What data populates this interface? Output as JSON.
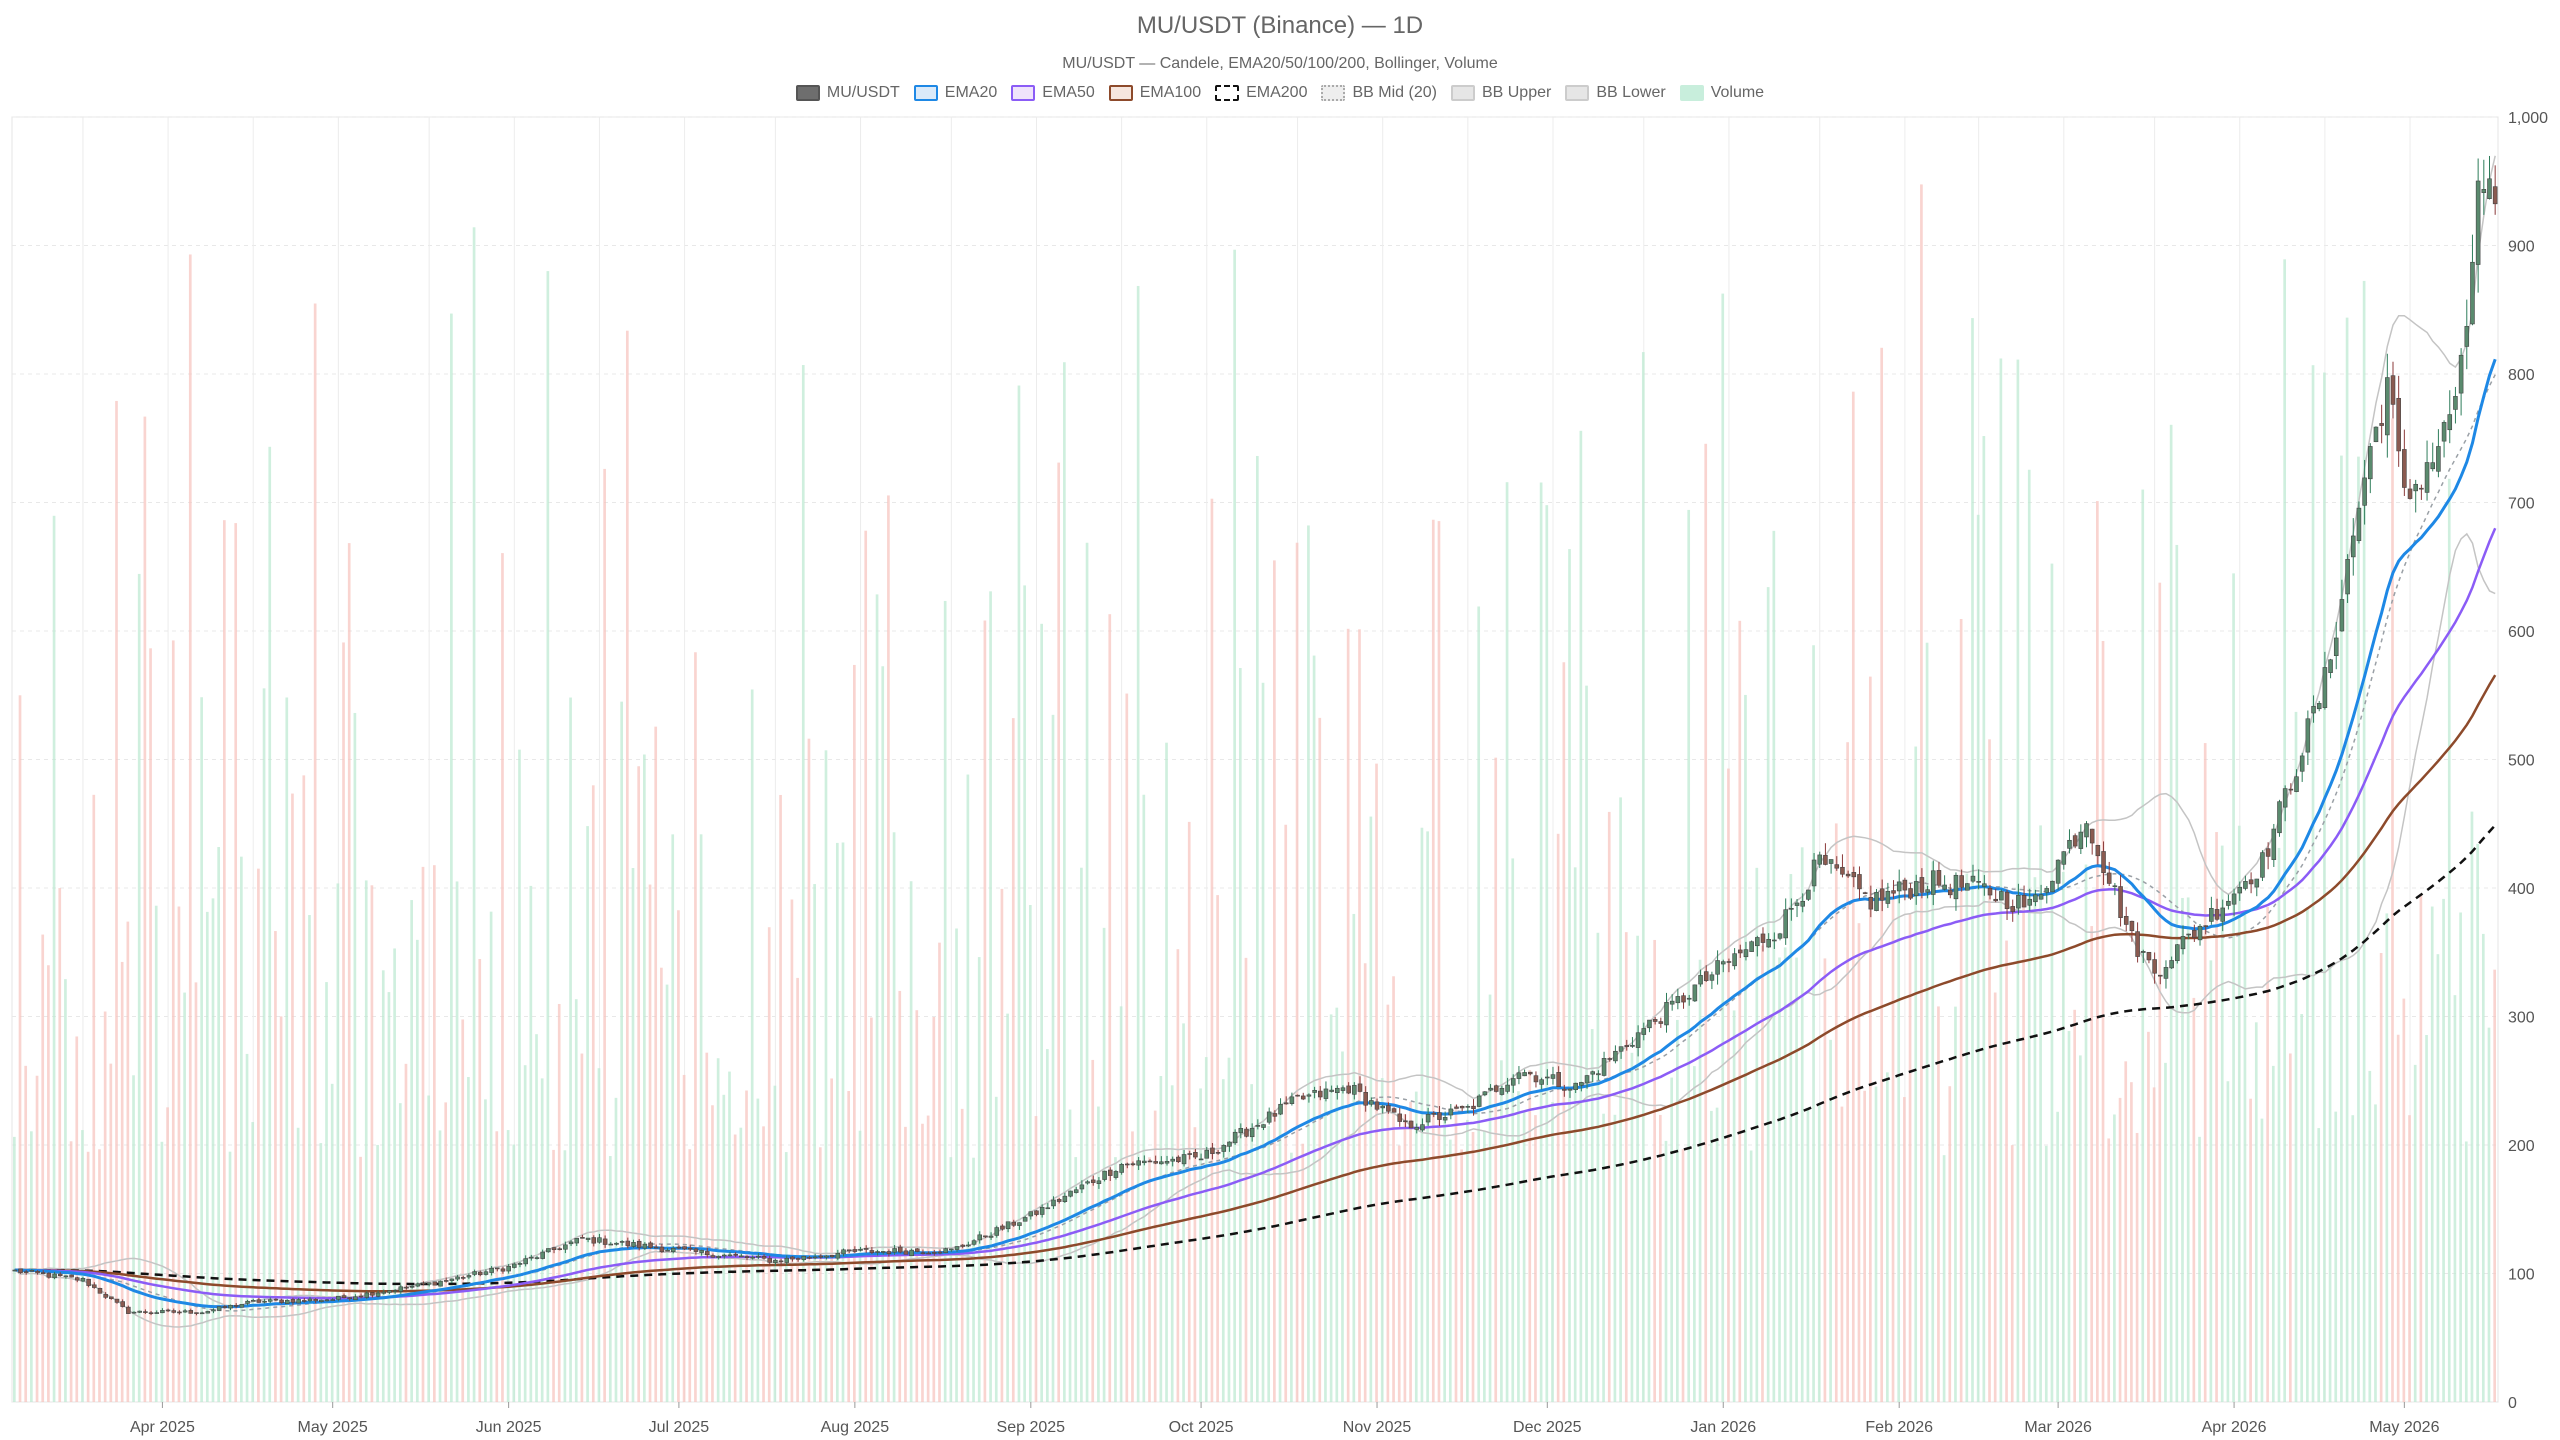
{
  "title": "MU/USDT (Binance) — 1D",
  "subtitle": "MU/USDT — Candele, EMA20/50/100/200, Bollinger, Volume",
  "legend": [
    {
      "name": "MU/USDT",
      "fill": "#6e6e6e",
      "stroke": "#555555",
      "style": "solid"
    },
    {
      "name": "EMA20",
      "fill": "#dbeaf9",
      "stroke": "#1e88e5",
      "style": "solid"
    },
    {
      "name": "EMA50",
      "fill": "#efe3fb",
      "stroke": "#8b5cf6",
      "style": "solid"
    },
    {
      "name": "EMA100",
      "fill": "#f6e6de",
      "stroke": "#8d4a2b",
      "style": "solid"
    },
    {
      "name": "EMA200",
      "fill": "#ffffff",
      "stroke": "#111111",
      "style": "dashed"
    },
    {
      "name": "BB Mid (20)",
      "fill": "#eeeeee",
      "stroke": "#aaaaaa",
      "style": "dotted"
    },
    {
      "name": "BB Upper",
      "fill": "#e6e6e6",
      "stroke": "#cccccc",
      "style": "solid"
    },
    {
      "name": "BB Lower",
      "fill": "#e6e6e6",
      "stroke": "#cccccc",
      "style": "solid"
    },
    {
      "name": "Volume",
      "fill": "#c8eedc",
      "stroke": "#c8eedc",
      "style": "solid"
    }
  ],
  "chart_data": {
    "type": "candlestick",
    "x_range": [
      "2025-03-20",
      "2026-05-31"
    ],
    "ylim": [
      0,
      1000
    ],
    "y_ticks": [
      0,
      100,
      200,
      300,
      400,
      500,
      600,
      700,
      800,
      900,
      "1,000"
    ],
    "y_axis_side": "right",
    "grid": true,
    "legend_position": "top-center",
    "x_ticks": [
      {
        "label": "Apr 2025",
        "date": "2025-04-01"
      },
      {
        "label": "May 2025",
        "date": "2025-05-01"
      },
      {
        "label": "Jun 2025",
        "date": "2025-06-01"
      },
      {
        "label": "Jul 2025",
        "date": "2025-07-01"
      },
      {
        "label": "Aug 2025",
        "date": "2025-08-01"
      },
      {
        "label": "Sep 2025",
        "date": "2025-09-01"
      },
      {
        "label": "Oct 2025",
        "date": "2025-10-01"
      },
      {
        "label": "Nov 2025",
        "date": "2025-11-01"
      },
      {
        "label": "Dec 2025",
        "date": "2025-12-01"
      },
      {
        "label": "Jan 2026",
        "date": "2026-01-01"
      },
      {
        "label": "Feb 2026",
        "date": "2026-02-01"
      },
      {
        "label": "Mar 2026",
        "date": "2026-03-01"
      },
      {
        "label": "Apr 2026",
        "date": "2026-04-01"
      },
      {
        "label": "May 2026",
        "date": "2026-05-01"
      }
    ],
    "colors": {
      "up": "#2e7d5b",
      "down": "#8b3a3a",
      "body_up": "#5a8a6e",
      "body_down": "#8a5a50",
      "vol_up": "#bfead3",
      "vol_down": "#f7c6c0"
    },
    "price_anchors": [
      {
        "date": "2025-03-20",
        "close": 102
      },
      {
        "date": "2025-04-01",
        "close": 95
      },
      {
        "date": "2025-04-09",
        "close": 70
      },
      {
        "date": "2025-04-22",
        "close": 70
      },
      {
        "date": "2025-05-01",
        "close": 78
      },
      {
        "date": "2025-05-15",
        "close": 80
      },
      {
        "date": "2025-06-01",
        "close": 92
      },
      {
        "date": "2025-06-15",
        "close": 105
      },
      {
        "date": "2025-06-28",
        "close": 127
      },
      {
        "date": "2025-07-15",
        "close": 118
      },
      {
        "date": "2025-08-01",
        "close": 110
      },
      {
        "date": "2025-08-15",
        "close": 117
      },
      {
        "date": "2025-09-01",
        "close": 118
      },
      {
        "date": "2025-09-15",
        "close": 145
      },
      {
        "date": "2025-10-01",
        "close": 185
      },
      {
        "date": "2025-10-15",
        "close": 190
      },
      {
        "date": "2025-11-01",
        "close": 235
      },
      {
        "date": "2025-11-10",
        "close": 245
      },
      {
        "date": "2025-11-20",
        "close": 215
      },
      {
        "date": "2025-12-01",
        "close": 228
      },
      {
        "date": "2025-12-10",
        "close": 258
      },
      {
        "date": "2025-12-20",
        "close": 245
      },
      {
        "date": "2026-01-01",
        "close": 290
      },
      {
        "date": "2026-01-15",
        "close": 340
      },
      {
        "date": "2026-01-25",
        "close": 370
      },
      {
        "date": "2026-02-01",
        "close": 420
      },
      {
        "date": "2026-02-10",
        "close": 390
      },
      {
        "date": "2026-02-20",
        "close": 405
      },
      {
        "date": "2026-03-01",
        "close": 400
      },
      {
        "date": "2026-03-10",
        "close": 385
      },
      {
        "date": "2026-03-20",
        "close": 455
      },
      {
        "date": "2026-03-28",
        "close": 360
      },
      {
        "date": "2026-04-01",
        "close": 335
      },
      {
        "date": "2026-04-10",
        "close": 375
      },
      {
        "date": "2026-04-20",
        "close": 420
      },
      {
        "date": "2026-05-01",
        "close": 560
      },
      {
        "date": "2026-05-08",
        "close": 720
      },
      {
        "date": "2026-05-12",
        "close": 795
      },
      {
        "date": "2026-05-15",
        "close": 700
      },
      {
        "date": "2026-05-22",
        "close": 752
      },
      {
        "date": "2026-05-26",
        "close": 820
      },
      {
        "date": "2026-05-28",
        "close": 955
      },
      {
        "date": "2026-05-31",
        "close": 930
      }
    ],
    "volume_range": [
      150,
      930
    ]
  }
}
